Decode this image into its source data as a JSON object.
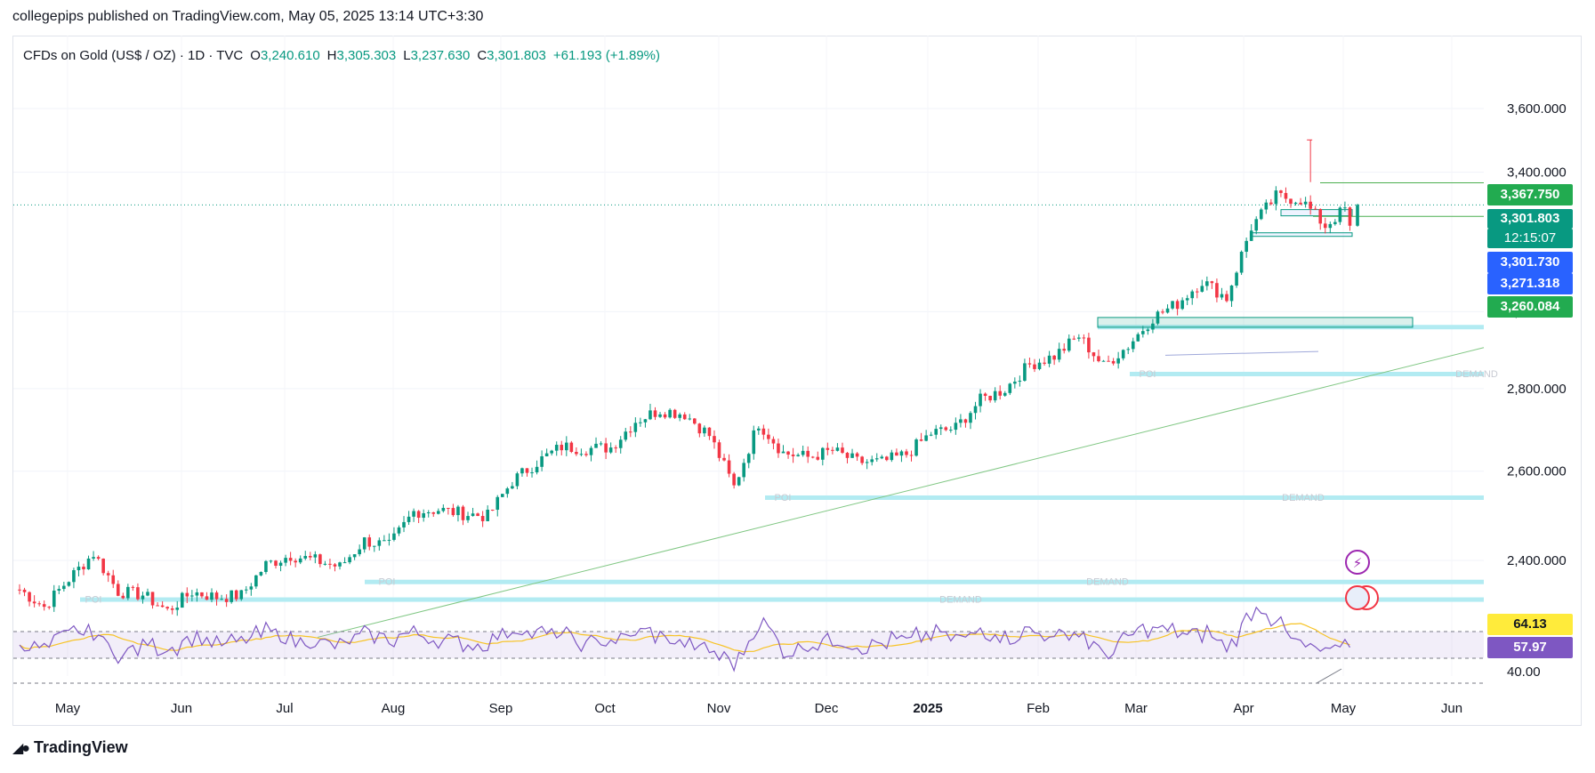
{
  "header": {
    "publisher_line": "collegepips published on TradingView.com, May 05, 2025 13:14 UTC+3:30"
  },
  "legend": {
    "symbol": "CFDs on Gold (US$ / OZ) · 1D · TVC",
    "open_label": "O",
    "open": "3,240.610",
    "high_label": "H",
    "high": "3,305.303",
    "low_label": "L",
    "low": "3,237.630",
    "close_label": "C",
    "close": "3,301.803",
    "change": "+61.193 (+1.89%)"
  },
  "price_tags": {
    "level_1": "3,367.750",
    "last_price": "3,301.803",
    "countdown": "12:15:07",
    "level_2": "3,301.730",
    "level_3": "3,271.318",
    "level_4": "3,260.084",
    "rsi_ma": "64.13",
    "rsi": "57.97"
  },
  "zone_labels": {
    "poi": "POI",
    "demand": "DEMAND"
  },
  "footer": {
    "brand": "TradingView"
  },
  "colors": {
    "up": "#089981",
    "down": "#f23645",
    "rsi": "#7e57c2",
    "rsi_ma": "#f7c325",
    "zone": "#b2ebf2",
    "trendline": "#81c784",
    "level_line": "#4caf50"
  },
  "chart_data": {
    "type": "candlestick",
    "title": "CFDs on Gold (US$ / OZ) · 1D · TVC",
    "y_ticks": [
      "3,600.000",
      "3,400.000",
      "3,000.000",
      "2,800.000",
      "2,600.000",
      "2,400.000"
    ],
    "y_range": [
      2220,
      3800
    ],
    "x_ticks": [
      "May",
      "Jun",
      "Jul",
      "Aug",
      "Sep",
      "Oct",
      "Nov",
      "Dec",
      "2025",
      "Feb",
      "Mar",
      "Apr",
      "May",
      "Jun"
    ],
    "rsi_ticks": [
      "40.00"
    ],
    "grid": true,
    "weekly_closes": [
      {
        "week": "2024-04-22",
        "close": 2338
      },
      {
        "week": "2024-04-29",
        "close": 2302
      },
      {
        "week": "2024-05-06",
        "close": 2360
      },
      {
        "week": "2024-05-13",
        "close": 2415
      },
      {
        "week": "2024-05-20",
        "close": 2334
      },
      {
        "week": "2024-05-27",
        "close": 2327
      },
      {
        "week": "2024-06-03",
        "close": 2294
      },
      {
        "week": "2024-06-10",
        "close": 2333
      },
      {
        "week": "2024-06-17",
        "close": 2322
      },
      {
        "week": "2024-06-24",
        "close": 2326
      },
      {
        "week": "2024-07-01",
        "close": 2391
      },
      {
        "week": "2024-07-08",
        "close": 2411
      },
      {
        "week": "2024-07-15",
        "close": 2400
      },
      {
        "week": "2024-07-22",
        "close": 2386
      },
      {
        "week": "2024-07-29",
        "close": 2443
      },
      {
        "week": "2024-08-05",
        "close": 2431
      },
      {
        "week": "2024-08-12",
        "close": 2507
      },
      {
        "week": "2024-08-19",
        "close": 2512
      },
      {
        "week": "2024-08-26",
        "close": 2503
      },
      {
        "week": "2024-09-02",
        "close": 2497
      },
      {
        "week": "2024-09-09",
        "close": 2577
      },
      {
        "week": "2024-09-16",
        "close": 2621
      },
      {
        "week": "2024-09-23",
        "close": 2658
      },
      {
        "week": "2024-09-30",
        "close": 2653
      },
      {
        "week": "2024-10-07",
        "close": 2656
      },
      {
        "week": "2024-10-14",
        "close": 2720
      },
      {
        "week": "2024-10-21",
        "close": 2747
      },
      {
        "week": "2024-10-28",
        "close": 2737
      },
      {
        "week": "2024-11-04",
        "close": 2685
      },
      {
        "week": "2024-11-11",
        "close": 2563
      },
      {
        "week": "2024-11-18",
        "close": 2715
      },
      {
        "week": "2024-11-25",
        "close": 2643
      },
      {
        "week": "2024-12-02",
        "close": 2633
      },
      {
        "week": "2024-12-09",
        "close": 2648
      },
      {
        "week": "2024-12-16",
        "close": 2622
      },
      {
        "week": "2024-12-23",
        "close": 2621
      },
      {
        "week": "2024-12-30",
        "close": 2640
      },
      {
        "week": "2025-01-06",
        "close": 2690
      },
      {
        "week": "2025-01-13",
        "close": 2703
      },
      {
        "week": "2025-01-20",
        "close": 2771
      },
      {
        "week": "2025-01-27",
        "close": 2799
      },
      {
        "week": "2025-02-03",
        "close": 2861
      },
      {
        "week": "2025-02-10",
        "close": 2883
      },
      {
        "week": "2025-02-17",
        "close": 2935
      },
      {
        "week": "2025-02-24",
        "close": 2857
      },
      {
        "week": "2025-03-03",
        "close": 2910
      },
      {
        "week": "2025-03-10",
        "close": 2984
      },
      {
        "week": "2025-03-17",
        "close": 3022
      },
      {
        "week": "2025-03-24",
        "close": 3084
      },
      {
        "week": "2025-03-31",
        "close": 3037
      },
      {
        "week": "2025-04-07",
        "close": 3237
      },
      {
        "week": "2025-04-14",
        "close": 3327
      },
      {
        "week": "2025-04-21",
        "close": 3318
      },
      {
        "week": "2025-04-28",
        "close": 3240
      },
      {
        "week": "2025-05-05",
        "close": 3301.803
      }
    ],
    "last_candle": {
      "open": 3240.61,
      "high": 3305.303,
      "low": 3237.63,
      "close": 3301.803
    },
    "all_time_high": 3500,
    "levels": [
      3367.75,
      3301.73,
      3271.318,
      3260.084
    ]
  }
}
